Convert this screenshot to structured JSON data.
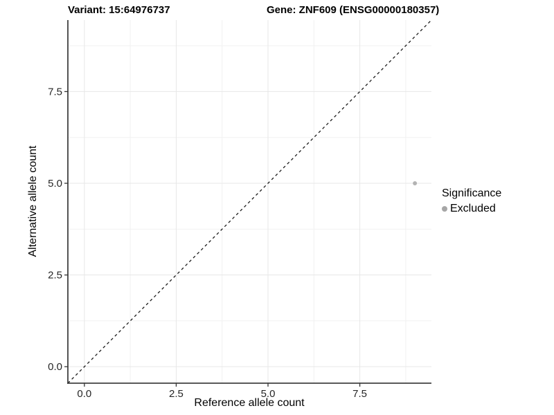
{
  "chart_data": {
    "type": "scatter",
    "title_left": "Variant: 15:64976737",
    "title_right": "Gene: ZNF609 (ENSG00000180357)",
    "xlabel": "Reference allele count",
    "ylabel": "Alternative allele count",
    "xlim": [
      -0.45,
      9.45
    ],
    "ylim": [
      -0.45,
      9.45
    ],
    "x_ticks": [
      {
        "value": 0.0,
        "label": "0.0"
      },
      {
        "value": 2.5,
        "label": "2.5"
      },
      {
        "value": 5.0,
        "label": "5.0"
      },
      {
        "value": 7.5,
        "label": "7.5"
      }
    ],
    "y_ticks": [
      {
        "value": 0.0,
        "label": "0.0"
      },
      {
        "value": 2.5,
        "label": "2.5"
      },
      {
        "value": 5.0,
        "label": "5.0"
      },
      {
        "value": 7.5,
        "label": "7.5"
      }
    ],
    "x_minor_ticks": [
      1.25,
      3.75,
      6.25,
      8.75
    ],
    "y_minor_ticks": [
      1.25,
      3.75,
      6.25,
      8.75
    ],
    "grid": true,
    "reference_line": {
      "kind": "identity",
      "style": "dashed",
      "color": "#1a1a1a"
    },
    "series": [
      {
        "name": "Excluded",
        "color": "#b3b3b3",
        "points": [
          {
            "x": 9,
            "y": 5
          }
        ]
      }
    ],
    "legend": {
      "title": "Significance",
      "position": "right",
      "items": [
        {
          "label": "Excluded",
          "color": "#a6a6a6"
        }
      ]
    },
    "colors": {
      "grid_major": "#e7e7e7",
      "grid_minor": "#f1f1f1",
      "axis_line": "#404040",
      "tick_mark": "#333333",
      "tick_label": "#262626"
    }
  }
}
